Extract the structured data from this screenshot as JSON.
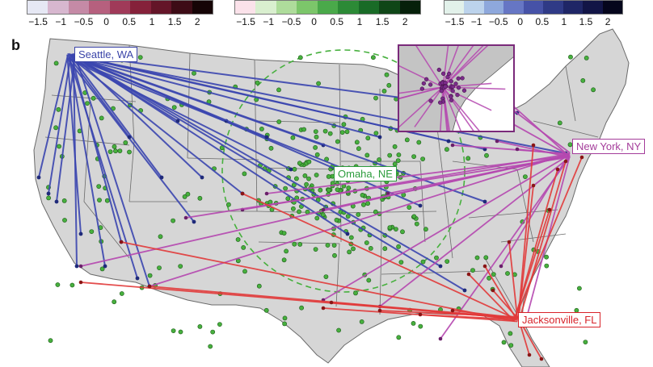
{
  "panel_letter": "b",
  "legends": [
    {
      "id": "seattle",
      "colors": [
        "#e6e8f4",
        "#d7b7cf",
        "#c58aa6",
        "#b6607e",
        "#a03a59",
        "#85213a",
        "#641528",
        "#3d0c16",
        "#150406"
      ],
      "ticks": [
        "−1.5",
        "−1",
        "−0.5",
        "0",
        "0.5",
        "1",
        "1.5",
        "2"
      ]
    },
    {
      "id": "omaha",
      "colors": [
        "#fbe2ea",
        "#d9efcf",
        "#aedc9b",
        "#7cc66a",
        "#4aa94a",
        "#2c8a36",
        "#196b27",
        "#0f4617",
        "#06200a"
      ],
      "ticks": [
        "−1.5",
        "−1",
        "−0.5",
        "0",
        "0.5",
        "1",
        "1.5",
        "2"
      ]
    },
    {
      "id": "newyork",
      "colors": [
        "#e2f1ea",
        "#bcd3ec",
        "#8ea8dc",
        "#6676c4",
        "#4652a7",
        "#2f3a86",
        "#1f2666",
        "#121546",
        "#05061c"
      ],
      "ticks": [
        "−1.5",
        "−1",
        "−0.5",
        "0",
        "0.5",
        "1",
        "1.5",
        "2"
      ]
    }
  ],
  "cities": [
    {
      "id": "seattle",
      "label": "Seattle, WA",
      "color": "#3a44a8"
    },
    {
      "id": "omaha",
      "label": "Omaha, NE",
      "color": "#2c9c3c"
    },
    {
      "id": "newyork",
      "label": "New York, NY",
      "color": "#a43c9a"
    },
    {
      "id": "jacksonville",
      "label": "Jacksonville, FL",
      "color": "#d8232a"
    }
  ],
  "colors": {
    "land": "#d6d6d6",
    "border": "#6a6a6a",
    "seattle_line": "#3b46b0",
    "newyork_line": "#b548b0",
    "jacksonville_line": "#e23a3a",
    "omaha_dot": "#47b03e",
    "inset_frame": "#7a2a7a"
  }
}
